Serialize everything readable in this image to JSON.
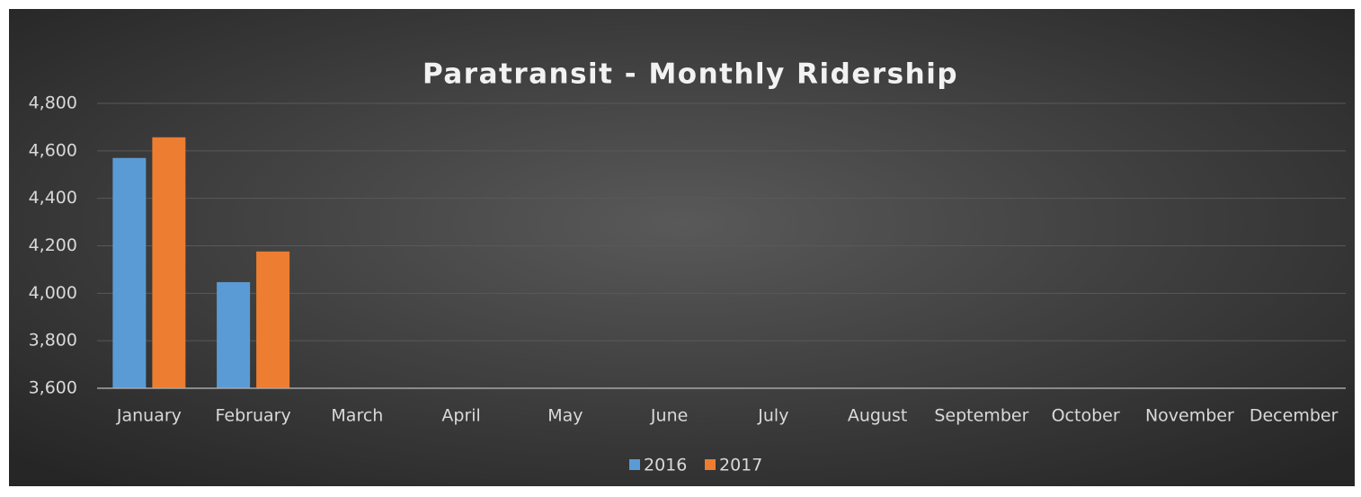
{
  "chart_data": {
    "type": "bar",
    "title": "Paratransit - Monthly Ridership",
    "categories": [
      "January",
      "February",
      "March",
      "April",
      "May",
      "June",
      "July",
      "August",
      "September",
      "October",
      "November",
      "December"
    ],
    "series": [
      {
        "name": "2016",
        "color": "#5b9bd5",
        "values": [
          4570,
          4047,
          null,
          null,
          null,
          null,
          null,
          null,
          null,
          null,
          null,
          null
        ]
      },
      {
        "name": "2017",
        "color": "#ed7d31",
        "values": [
          4657,
          4176,
          null,
          null,
          null,
          null,
          null,
          null,
          null,
          null,
          null,
          null
        ]
      }
    ],
    "ylim": [
      3600,
      4800
    ],
    "yticks": [
      {
        "value": 3600,
        "label": "3,600"
      },
      {
        "value": 3800,
        "label": "3,800"
      },
      {
        "value": 4000,
        "label": "4,000"
      },
      {
        "value": 4200,
        "label": "4,200"
      },
      {
        "value": 4400,
        "label": "4,400"
      },
      {
        "value": 4600,
        "label": "4,600"
      },
      {
        "value": 4800,
        "label": "4,800"
      }
    ],
    "grid": true,
    "legend": "bottom"
  }
}
